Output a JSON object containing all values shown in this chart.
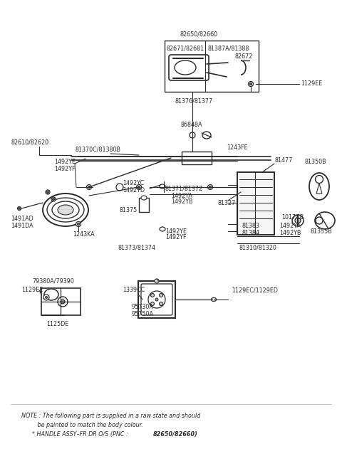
{
  "bg_color": "#ffffff",
  "line_color": "#2a2a2a",
  "text_color": "#2a2a2a",
  "figsize": [
    4.8,
    6.55
  ],
  "dpi": 100,
  "note_line1": "NOTE : The following part is supplied in a raw state and should",
  "note_line2": "         be painted to match the body colour.",
  "note_line3": "      * HANDLE ASSY–FR DR O/S (PNC : ",
  "note_bold": "82650/82660)"
}
